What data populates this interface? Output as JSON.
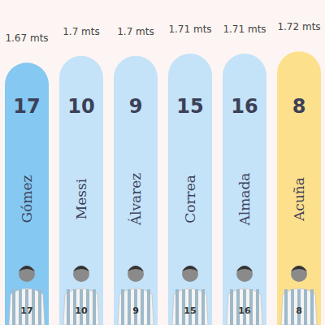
{
  "chart_data": {
    "type": "bar",
    "categories": [
      "Gómez",
      "Messi",
      "Álvarez",
      "Correa",
      "Almada",
      "Acuña"
    ],
    "values": [
      1.67,
      1.7,
      1.7,
      1.71,
      1.71,
      1.72
    ],
    "value_labels": [
      "1.67 mts",
      "1.7 mts",
      "1.7 mts",
      "1.71 mts",
      "1.71 mts",
      "1.72 mts"
    ],
    "jersey_numbers": [
      17,
      10,
      9,
      15,
      16,
      8
    ],
    "colors": [
      "#85c8f2",
      "#c4e2f8",
      "#c4e2f8",
      "#c4e2f8",
      "#c4e2f8",
      "#fde08c"
    ],
    "ylim": [
      0.5,
      1.75
    ],
    "tick_labels": false,
    "data_labels": true
  }
}
